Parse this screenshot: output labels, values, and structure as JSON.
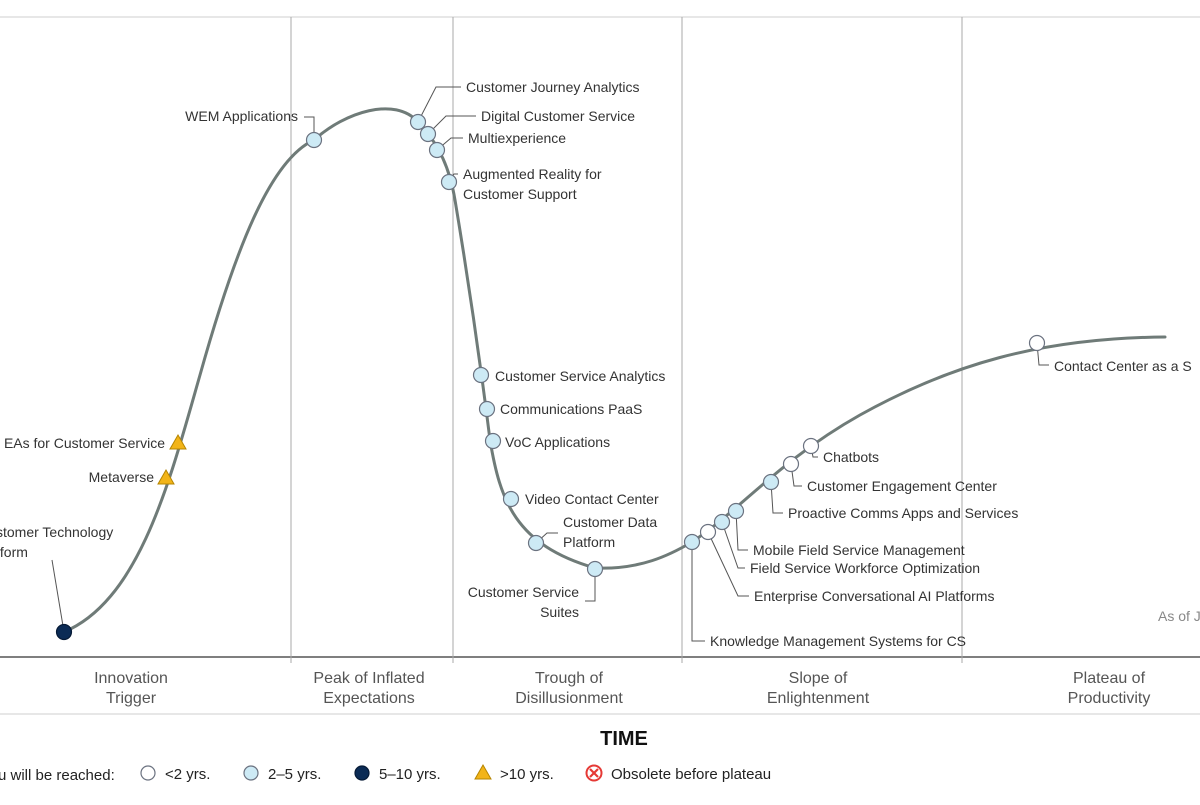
{
  "chart_data": {
    "type": "hype-cycle",
    "x_axis_title": "TIME",
    "as_of": "As of J",
    "phases": [
      {
        "lines": [
          "Innovation",
          "Trigger"
        ]
      },
      {
        "lines": [
          "Peak of Inflated",
          "Expectations"
        ]
      },
      {
        "lines": [
          "Trough of",
          "Disillusionment"
        ]
      },
      {
        "lines": [
          "Slope of",
          "Enlightenment"
        ]
      },
      {
        "lines": [
          "Plateau of",
          "Productivity"
        ]
      }
    ],
    "legend": {
      "title": "u will be reached:",
      "items": [
        {
          "marker": "open-circle",
          "label": "<2 yrs."
        },
        {
          "marker": "light-circle",
          "label": "2–5 yrs."
        },
        {
          "marker": "dark-circle",
          "label": "5–10 yrs."
        },
        {
          "marker": "triangle",
          "label": ">10 yrs."
        },
        {
          "marker": "cross",
          "label": "Obsolete before plateau"
        }
      ]
    },
    "technologies": [
      {
        "lines": [
          "stomer Technology",
          "tform"
        ],
        "category": "5-10"
      },
      {
        "lines": [
          "Metaverse"
        ],
        "category": ">10"
      },
      {
        "lines": [
          "EAs for Customer Service"
        ],
        "category": ">10"
      },
      {
        "lines": [
          "WEM Applications"
        ],
        "category": "2-5"
      },
      {
        "lines": [
          "Customer Journey Analytics"
        ],
        "category": "2-5"
      },
      {
        "lines": [
          "Digital Customer Service"
        ],
        "category": "2-5"
      },
      {
        "lines": [
          "Multiexperience"
        ],
        "category": "2-5"
      },
      {
        "lines": [
          "Augmented Reality for",
          "Customer Support"
        ],
        "category": "2-5"
      },
      {
        "lines": [
          "Customer Service Analytics"
        ],
        "category": "2-5"
      },
      {
        "lines": [
          "Communications PaaS"
        ],
        "category": "2-5"
      },
      {
        "lines": [
          "VoC Applications"
        ],
        "category": "2-5"
      },
      {
        "lines": [
          "Video Contact Center"
        ],
        "category": "2-5"
      },
      {
        "lines": [
          "Customer Data",
          "Platform"
        ],
        "category": "2-5"
      },
      {
        "lines": [
          "Customer Service",
          "Suites"
        ],
        "category": "2-5"
      },
      {
        "lines": [
          "Knowledge Management Systems for CS"
        ],
        "category": "2-5"
      },
      {
        "lines": [
          "Enterprise Conversational AI Platforms"
        ],
        "category": "<2"
      },
      {
        "lines": [
          "Field Service Workforce Optimization"
        ],
        "category": "2-5"
      },
      {
        "lines": [
          "Mobile Field Service Management"
        ],
        "category": "2-5"
      },
      {
        "lines": [
          "Proactive Comms Apps and Services"
        ],
        "category": "2-5"
      },
      {
        "lines": [
          "Customer Engagement Center"
        ],
        "category": "<2"
      },
      {
        "lines": [
          "Chatbots"
        ],
        "category": "<2"
      },
      {
        "lines": [
          "Contact Center as a S"
        ],
        "category": "<2"
      }
    ],
    "colors": {
      "curve": "#6f7b78",
      "divider": "#a9a9a9",
      "open_fill": "#ffffff",
      "light_fill": "#cdeaf5",
      "dark_fill": "#0b2b55",
      "triangle_fill": "#f2b418",
      "cross": "#e53935",
      "marker_stroke": "#6b7280",
      "leader": "#555555"
    }
  }
}
